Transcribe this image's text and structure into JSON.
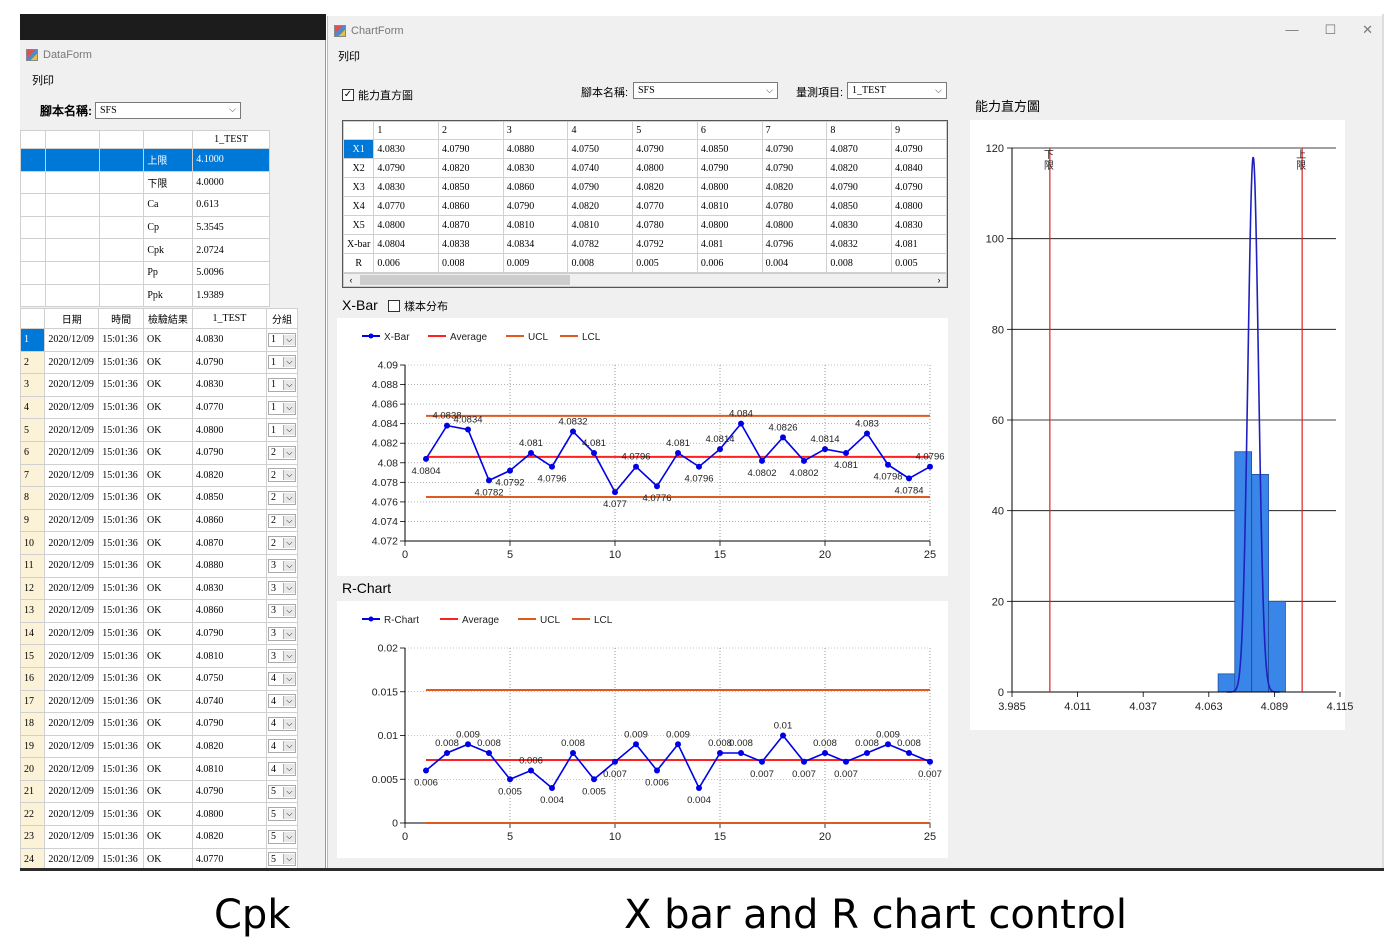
{
  "dataform": {
    "title": "DataForm",
    "menu": "列印",
    "script_label": "腳本名稱:",
    "script_value": "SFS",
    "stats_header": "1_TEST",
    "stats": [
      {
        "label": "上限",
        "value": "4.1000"
      },
      {
        "label": "下限",
        "value": "4.0000"
      },
      {
        "label": "Ca",
        "value": "0.613"
      },
      {
        "label": "Cp",
        "value": "5.3545"
      },
      {
        "label": "Cpk",
        "value": "2.0724"
      },
      {
        "label": "Pp",
        "value": "5.0096"
      },
      {
        "label": "Ppk",
        "value": "1.9389"
      }
    ],
    "table_headers": [
      "日期",
      "時間",
      "檢驗結果",
      "1_TEST",
      "分組"
    ],
    "rows": [
      {
        "n": "1",
        "date": "2020/12/09",
        "time": "15:01:36",
        "res": "OK",
        "val": "4.0830",
        "grp": "1"
      },
      {
        "n": "2",
        "date": "2020/12/09",
        "time": "15:01:36",
        "res": "OK",
        "val": "4.0790",
        "grp": "1"
      },
      {
        "n": "3",
        "date": "2020/12/09",
        "time": "15:01:36",
        "res": "OK",
        "val": "4.0830",
        "grp": "1"
      },
      {
        "n": "4",
        "date": "2020/12/09",
        "time": "15:01:36",
        "res": "OK",
        "val": "4.0770",
        "grp": "1"
      },
      {
        "n": "5",
        "date": "2020/12/09",
        "time": "15:01:36",
        "res": "OK",
        "val": "4.0800",
        "grp": "1"
      },
      {
        "n": "6",
        "date": "2020/12/09",
        "time": "15:01:36",
        "res": "OK",
        "val": "4.0790",
        "grp": "2"
      },
      {
        "n": "7",
        "date": "2020/12/09",
        "time": "15:01:36",
        "res": "OK",
        "val": "4.0820",
        "grp": "2"
      },
      {
        "n": "8",
        "date": "2020/12/09",
        "time": "15:01:36",
        "res": "OK",
        "val": "4.0850",
        "grp": "2"
      },
      {
        "n": "9",
        "date": "2020/12/09",
        "time": "15:01:36",
        "res": "OK",
        "val": "4.0860",
        "grp": "2"
      },
      {
        "n": "10",
        "date": "2020/12/09",
        "time": "15:01:36",
        "res": "OK",
        "val": "4.0870",
        "grp": "2"
      },
      {
        "n": "11",
        "date": "2020/12/09",
        "time": "15:01:36",
        "res": "OK",
        "val": "4.0880",
        "grp": "3"
      },
      {
        "n": "12",
        "date": "2020/12/09",
        "time": "15:01:36",
        "res": "OK",
        "val": "4.0830",
        "grp": "3"
      },
      {
        "n": "13",
        "date": "2020/12/09",
        "time": "15:01:36",
        "res": "OK",
        "val": "4.0860",
        "grp": "3"
      },
      {
        "n": "14",
        "date": "2020/12/09",
        "time": "15:01:36",
        "res": "OK",
        "val": "4.0790",
        "grp": "3"
      },
      {
        "n": "15",
        "date": "2020/12/09",
        "time": "15:01:36",
        "res": "OK",
        "val": "4.0810",
        "grp": "3"
      },
      {
        "n": "16",
        "date": "2020/12/09",
        "time": "15:01:36",
        "res": "OK",
        "val": "4.0750",
        "grp": "4"
      },
      {
        "n": "17",
        "date": "2020/12/09",
        "time": "15:01:36",
        "res": "OK",
        "val": "4.0740",
        "grp": "4"
      },
      {
        "n": "18",
        "date": "2020/12/09",
        "time": "15:01:36",
        "res": "OK",
        "val": "4.0790",
        "grp": "4"
      },
      {
        "n": "19",
        "date": "2020/12/09",
        "time": "15:01:36",
        "res": "OK",
        "val": "4.0820",
        "grp": "4"
      },
      {
        "n": "20",
        "date": "2020/12/09",
        "time": "15:01:36",
        "res": "OK",
        "val": "4.0810",
        "grp": "4"
      },
      {
        "n": "21",
        "date": "2020/12/09",
        "time": "15:01:36",
        "res": "OK",
        "val": "4.0790",
        "grp": "5"
      },
      {
        "n": "22",
        "date": "2020/12/09",
        "time": "15:01:36",
        "res": "OK",
        "val": "4.0800",
        "grp": "5"
      },
      {
        "n": "23",
        "date": "2020/12/09",
        "time": "15:01:36",
        "res": "OK",
        "val": "4.0820",
        "grp": "5"
      },
      {
        "n": "24",
        "date": "2020/12/09",
        "time": "15:01:36",
        "res": "OK",
        "val": "4.0770",
        "grp": "5"
      }
    ]
  },
  "chartform": {
    "title": "ChartForm",
    "menu": "列印",
    "capability_checkbox": "能力直方圖",
    "script_label": "腳本名稱:",
    "script_value": "SFS",
    "item_label": "量測項目:",
    "item_value": "1_TEST",
    "col_headers": [
      "1",
      "2",
      "3",
      "4",
      "5",
      "6",
      "7",
      "8",
      "9"
    ],
    "data_rows": [
      {
        "label": "X1",
        "values": [
          "4.0830",
          "4.0790",
          "4.0880",
          "4.0750",
          "4.0790",
          "4.0850",
          "4.0790",
          "4.0870",
          "4.0790"
        ]
      },
      {
        "label": "X2",
        "values": [
          "4.0790",
          "4.0820",
          "4.0830",
          "4.0740",
          "4.0800",
          "4.0790",
          "4.0790",
          "4.0820",
          "4.0840"
        ]
      },
      {
        "label": "X3",
        "values": [
          "4.0830",
          "4.0850",
          "4.0860",
          "4.0790",
          "4.0820",
          "4.0800",
          "4.0820",
          "4.0790",
          "4.0790"
        ]
      },
      {
        "label": "X4",
        "values": [
          "4.0770",
          "4.0860",
          "4.0790",
          "4.0820",
          "4.0770",
          "4.0810",
          "4.0780",
          "4.0850",
          "4.0800"
        ]
      },
      {
        "label": "X5",
        "values": [
          "4.0800",
          "4.0870",
          "4.0810",
          "4.0810",
          "4.0780",
          "4.0800",
          "4.0800",
          "4.0830",
          "4.0830"
        ]
      },
      {
        "label": "X-bar",
        "values": [
          "4.0804",
          "4.0838",
          "4.0834",
          "4.0782",
          "4.0792",
          "4.081",
          "4.0796",
          "4.0832",
          "4.081"
        ]
      },
      {
        "label": "R",
        "values": [
          "0.006",
          "0.008",
          "0.009",
          "0.008",
          "0.005",
          "0.006",
          "0.004",
          "0.008",
          "0.005"
        ]
      }
    ],
    "xbar_title": "X-Bar",
    "sample_dist_checkbox": "樣本分布",
    "rchart_title": "R-Chart",
    "histogram_title": "能力直方圖"
  },
  "captions": {
    "left": "Cpk",
    "right": "X bar and R chart control"
  },
  "chart_data": [
    {
      "type": "line",
      "legend": [
        "X-Bar",
        "Average",
        "UCL",
        "LCL"
      ],
      "legend_placement": "top-left",
      "x": [
        1,
        2,
        3,
        4,
        5,
        6,
        7,
        8,
        9,
        10,
        11,
        12,
        13,
        14,
        15,
        16,
        17,
        18,
        19,
        20,
        21,
        22,
        23,
        24,
        25
      ],
      "series": [
        {
          "name": "X-Bar",
          "values": [
            4.0804,
            4.0838,
            4.0834,
            4.0782,
            4.0792,
            4.081,
            4.0796,
            4.0832,
            4.081,
            4.077,
            4.0796,
            4.0776,
            4.081,
            4.0796,
            4.0814,
            4.084,
            4.0802,
            4.0826,
            4.0802,
            4.0814,
            4.081,
            4.083,
            4.0798,
            4.0784,
            4.0796
          ]
        }
      ],
      "average": 4.0806,
      "ucl": 4.0848,
      "lcl": 4.0765,
      "xlim": [
        0,
        25
      ],
      "ylim": [
        4.072,
        4.09
      ],
      "xticks": [
        0,
        5,
        10,
        15,
        20,
        25
      ],
      "yticks": [
        "4.072",
        "4.074",
        "4.076",
        "4.078",
        "4.08",
        "4.082",
        "4.084",
        "4.086",
        "4.088",
        "4.09"
      ],
      "grid": true,
      "colors": {
        "series": "#0000e6",
        "average": "#ff2020",
        "limits": "#e05a20"
      }
    },
    {
      "type": "line",
      "legend": [
        "R-Chart",
        "Average",
        "UCL",
        "LCL"
      ],
      "legend_placement": "top-left",
      "x": [
        1,
        2,
        3,
        4,
        5,
        6,
        7,
        8,
        9,
        10,
        11,
        12,
        13,
        14,
        15,
        16,
        17,
        18,
        19,
        20,
        21,
        22,
        23,
        24,
        25
      ],
      "series": [
        {
          "name": "R-Chart",
          "values": [
            0.006,
            0.008,
            0.009,
            0.008,
            0.005,
            0.006,
            0.004,
            0.008,
            0.005,
            0.007,
            0.009,
            0.006,
            0.009,
            0.004,
            0.008,
            0.008,
            0.007,
            0.01,
            0.007,
            0.008,
            0.007,
            0.008,
            0.009,
            0.008,
            0.007
          ]
        }
      ],
      "average": 0.0072,
      "ucl": 0.0152,
      "lcl": 0,
      "xlim": [
        0,
        25
      ],
      "ylim": [
        0,
        0.02
      ],
      "xticks": [
        0,
        5,
        10,
        15,
        20,
        25
      ],
      "yticks": [
        "0",
        "0.005",
        "0.01",
        "0.015",
        "0.02"
      ],
      "grid": true,
      "colors": {
        "series": "#0000e6",
        "average": "#ff2020",
        "limits": "#e05a20"
      }
    },
    {
      "type": "bar",
      "x_bins": [
        4.0667,
        4.0733,
        4.08,
        4.0867
      ],
      "bin_width": 0.00667,
      "values": [
        4,
        53,
        48,
        20
      ],
      "curve_peak": 118,
      "curve_mean": 4.0806,
      "curve_sigma": 0.0021,
      "usl": 4.1,
      "lsl": 4.0,
      "usl_label": "上限",
      "lsl_label": "下限",
      "xlim": [
        3.985,
        4.115
      ],
      "ylim": [
        0,
        120
      ],
      "xticks": [
        "3.985",
        "4.011",
        "4.037",
        "4.063",
        "4.089",
        "4.115"
      ],
      "yticks": [
        "0",
        "20",
        "40",
        "60",
        "80",
        "100",
        "120"
      ],
      "grid": true,
      "colors": {
        "bars": "#3a86e8",
        "curve": "#2020c0",
        "limits": "#e02020"
      }
    }
  ]
}
